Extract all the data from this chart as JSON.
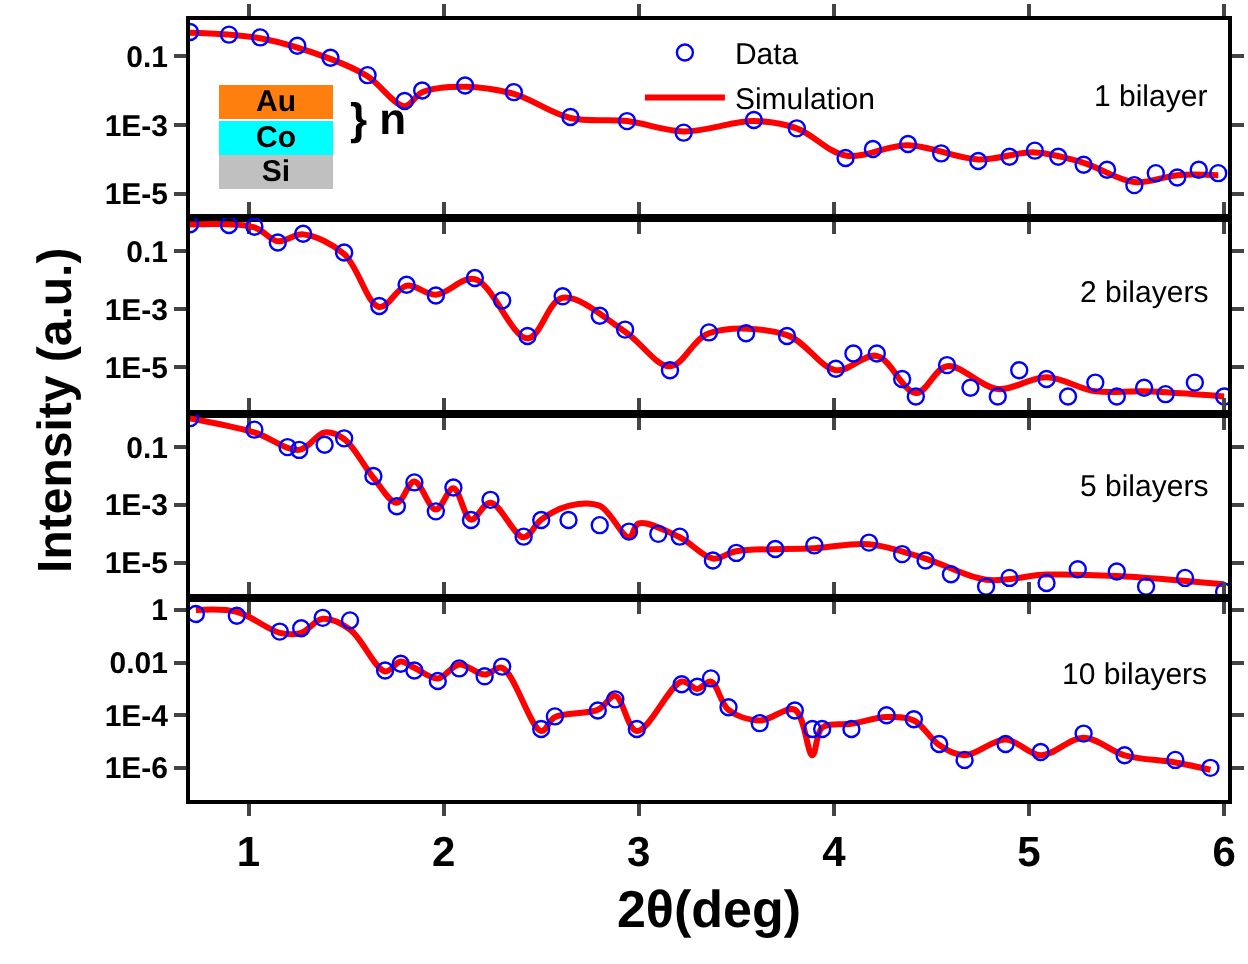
{
  "chart_data": [
    {
      "type": "scatter",
      "ylabel": "Intensity (a.u.)",
      "annotations": [
        "1 bilayer",
        "Au",
        "Co",
        "Si",
        "} n"
      ],
      "legend": "top",
      "log": "y",
      "tick_labels": "y",
      "xlim": [
        0.7,
        6.02
      ],
      "xticks": [
        1,
        2,
        3,
        4,
        5,
        6
      ],
      "ylim": [
        2e-06,
        1.12
      ],
      "yticks": [
        0.1,
        {
          "value": 0.001,
          "label": "1E-3"
        },
        {
          "value": 1e-05,
          "label": "1E-5"
        }
      ],
      "series": [
        {
          "name": "Data",
          "marker": "circle",
          "color": "#0000ff",
          "x": [
            0.7,
            0.9,
            1.06,
            1.25,
            1.42,
            1.61,
            1.8,
            1.89,
            2.11,
            2.36,
            2.65,
            2.94,
            3.23,
            3.59,
            3.81,
            4.06,
            4.2,
            4.38,
            4.55,
            4.74,
            4.9,
            5.03,
            5.15,
            5.28,
            5.4,
            5.54,
            5.65,
            5.76,
            5.87,
            5.97
          ],
          "values": [
            0.5,
            0.42,
            0.35,
            0.2,
            0.09,
            0.028,
            0.005,
            0.01,
            0.014,
            0.009,
            0.0017,
            0.0013,
            0.0006,
            0.0014,
            0.0008,
            0.00011,
            0.0002,
            0.00028,
            0.00015,
            9e-05,
            0.00012,
            0.00018,
            0.00012,
            7e-05,
            5e-05,
            1.8e-05,
            4e-05,
            3e-05,
            5e-05,
            4e-05
          ]
        },
        {
          "name": "Simulation",
          "type": "line",
          "color": "#ff0000",
          "x": [
            0.7,
            1.06,
            1.42,
            1.61,
            1.8,
            1.89,
            2.11,
            2.36,
            2.65,
            2.94,
            3.23,
            3.59,
            3.81,
            4.06,
            4.38,
            4.74,
            5.03,
            5.28,
            5.54,
            5.76,
            5.97
          ],
          "values": [
            0.48,
            0.33,
            0.083,
            0.026,
            0.0035,
            0.009,
            0.013,
            0.008,
            0.0016,
            0.0013,
            0.00065,
            0.0013,
            0.0008,
            0.00013,
            0.00026,
            0.0001,
            0.00016,
            8e-05,
            2.2e-05,
            3.5e-05,
            3.5e-05
          ]
        }
      ]
    },
    {
      "type": "scatter",
      "annotations": [
        "2 bilayers"
      ],
      "log": "y",
      "tick_labels": "y",
      "xlim": [
        0.7,
        6.02
      ],
      "xticks": [
        1,
        2,
        3,
        4,
        5,
        6
      ],
      "ylim": [
        2.5e-07,
        1.4
      ],
      "yticks": [
        0.1,
        {
          "value": 0.001,
          "label": "1E-3"
        },
        {
          "value": 1e-05,
          "label": "1E-5"
        }
      ],
      "series": [
        {
          "marker": "circle",
          "color": "#0000ff",
          "x": [
            0.7,
            0.9,
            1.03,
            1.15,
            1.28,
            1.49,
            1.67,
            1.81,
            1.96,
            2.16,
            2.3,
            2.43,
            2.61,
            2.8,
            2.93,
            3.16,
            3.36,
            3.55,
            3.76,
            4.01,
            4.1,
            4.22,
            4.35,
            4.42,
            4.58,
            4.7,
            4.84,
            4.95,
            5.09,
            5.2,
            5.34,
            5.45,
            5.59,
            5.7,
            5.85,
            6.0
          ],
          "values": [
            0.85,
            0.8,
            0.7,
            0.2,
            0.4,
            0.09,
            0.0013,
            0.007,
            0.003,
            0.012,
            0.002,
            0.00012,
            0.0028,
            0.0006,
            0.0002,
            8e-06,
            0.00016,
            0.00015,
            0.00012,
            9e-06,
            3e-05,
            3e-05,
            4e-06,
            1e-06,
            1.2e-05,
            2e-06,
            1e-06,
            8e-06,
            4e-06,
            1e-06,
            3e-06,
            1e-06,
            2e-06,
            1.2e-06,
            3e-06,
            1e-06
          ]
        },
        {
          "type": "line",
          "color": "#ff0000",
          "x": [
            0.7,
            1.03,
            1.15,
            1.28,
            1.49,
            1.67,
            1.81,
            1.96,
            2.16,
            2.43,
            2.61,
            2.93,
            3.16,
            3.36,
            3.76,
            4.01,
            4.22,
            4.42,
            4.58,
            4.84,
            5.09,
            5.34,
            5.59,
            6.0
          ],
          "values": [
            0.83,
            0.66,
            0.22,
            0.38,
            0.08,
            0.0012,
            0.0065,
            0.0032,
            0.011,
            0.0001,
            0.0025,
            0.00017,
            1.1e-05,
            0.00015,
            0.00013,
            8e-06,
            2.5e-05,
            1.3e-06,
            1.1e-05,
            1.8e-06,
            4.6e-06,
            1.5e-06,
            1.5e-06,
            1e-06
          ]
        }
      ]
    },
    {
      "type": "scatter",
      "annotations": [
        "5 bilayers"
      ],
      "log": "y",
      "tick_labels": "y",
      "xlim": [
        0.7,
        6.02
      ],
      "xticks": [
        1,
        2,
        3,
        4,
        5,
        6
      ],
      "ylim": [
        6e-07,
        1.4
      ],
      "yticks": [
        0.1,
        {
          "value": 0.001,
          "label": "1E-3"
        },
        {
          "value": 1e-05,
          "label": "1E-5"
        }
      ],
      "series": [
        {
          "marker": "circle",
          "color": "#0000ff",
          "x": [
            0.7,
            1.03,
            1.2,
            1.26,
            1.39,
            1.49,
            1.64,
            1.76,
            1.85,
            1.96,
            2.05,
            2.14,
            2.24,
            2.41,
            2.5,
            2.64,
            2.8,
            2.95,
            3.1,
            3.21,
            3.38,
            3.5,
            3.7,
            3.9,
            4.18,
            4.35,
            4.47,
            4.6,
            4.78,
            4.9,
            5.09,
            5.25,
            5.45,
            5.6,
            5.8,
            6.0
          ],
          "values": [
            1.0,
            0.4,
            0.1,
            0.08,
            0.12,
            0.2,
            0.01,
            0.0009,
            0.006,
            0.0006,
            0.004,
            0.0003,
            0.0015,
            8e-05,
            0.0003,
            0.0003,
            0.0002,
            0.00012,
            0.0001,
            8e-05,
            1.2e-05,
            2.2e-05,
            3e-05,
            4e-05,
            5e-05,
            2e-05,
            1.2e-05,
            4e-06,
            1.5e-06,
            3e-06,
            2e-06,
            6e-06,
            5e-06,
            1.5e-06,
            3e-06,
            1e-06
          ]
        },
        {
          "type": "line",
          "color": "#ff0000",
          "x": [
            0.7,
            1.03,
            1.26,
            1.39,
            1.49,
            1.64,
            1.76,
            1.85,
            1.96,
            2.05,
            2.14,
            2.24,
            2.41,
            2.5,
            2.64,
            2.8,
            2.95,
            3.0,
            3.21,
            3.38,
            3.5,
            3.9,
            4.18,
            4.47,
            4.78,
            5.09,
            5.45,
            6.0
          ],
          "values": [
            0.98,
            0.32,
            0.08,
            0.32,
            0.19,
            0.0087,
            0.0012,
            0.0065,
            0.00069,
            0.0038,
            0.00031,
            0.0012,
            7.6e-05,
            0.00031,
            0.00093,
            0.00093,
            7.6e-05,
            0.00023,
            7.6e-05,
            1.4e-05,
            2.5e-05,
            3.2e-05,
            4.4e-05,
            1.4e-05,
            2.6e-06,
            3.9e-06,
            3.5e-06,
            1.8e-06
          ]
        }
      ]
    },
    {
      "type": "scatter",
      "xlabel": "2θ(deg)",
      "annotations": [
        "10 bilayers"
      ],
      "log": "y",
      "xlim": [
        0.7,
        6.02
      ],
      "xticks": [
        1,
        2,
        3,
        4,
        5,
        6
      ],
      "ylim": [
        6e-08,
        2.8
      ],
      "yticks": [
        1,
        0.01,
        {
          "value": 0.0001,
          "label": "1E-4"
        },
        {
          "value": 1e-06,
          "label": "1E-6"
        }
      ],
      "series": [
        {
          "marker": "circle",
          "color": "#0000ff",
          "x": [
            0.73,
            0.94,
            1.16,
            1.27,
            1.38,
            1.52,
            1.7,
            1.78,
            1.85,
            1.97,
            2.08,
            2.21,
            2.3,
            2.5,
            2.57,
            2.79,
            2.88,
            2.99,
            3.22,
            3.3,
            3.37,
            3.46,
            3.62,
            3.8,
            3.89,
            3.94,
            4.09,
            4.27,
            4.41,
            4.54,
            4.67,
            4.88,
            5.06,
            5.28,
            5.49,
            5.75,
            5.93
          ],
          "values": [
            0.7,
            0.6,
            0.15,
            0.2,
            0.5,
            0.4,
            0.005,
            0.009,
            0.005,
            0.002,
            0.006,
            0.003,
            0.007,
            3e-05,
            9e-05,
            0.00015,
            0.0004,
            3e-05,
            0.0015,
            0.0012,
            0.0025,
            0.0002,
            5e-05,
            0.00015,
            3e-05,
            3e-05,
            3e-05,
            0.0001,
            7e-05,
            8e-06,
            2e-06,
            8e-06,
            4e-06,
            2e-05,
            3e-06,
            2e-06,
            1e-06
          ]
        },
        {
          "type": "line",
          "color": "#ff0000",
          "x": [
            0.73,
            0.94,
            1.16,
            1.27,
            1.38,
            1.52,
            1.7,
            1.78,
            1.85,
            1.97,
            2.08,
            2.21,
            2.3,
            2.5,
            2.57,
            2.79,
            2.88,
            2.99,
            3.22,
            3.3,
            3.37,
            3.46,
            3.62,
            3.8,
            3.89,
            3.94,
            4.09,
            4.27,
            4.41,
            4.54,
            4.67,
            4.88,
            5.06,
            5.28,
            5.49,
            5.75,
            5.93
          ],
          "values": [
            1.0,
            0.85,
            0.135,
            0.135,
            0.46,
            0.18,
            0.0046,
            0.011,
            0.0063,
            0.0025,
            0.0085,
            0.0035,
            0.0063,
            2.5e-05,
            8.5e-05,
            0.00016,
            0.00054,
            2.5e-05,
            0.0019,
            0.001,
            0.0019,
            0.00016,
            6.3e-05,
            0.00016,
            3e-06,
            3.4e-05,
            4.7e-05,
            8.5e-05,
            6.3e-05,
            7.4e-06,
            3e-06,
            1.2e-05,
            3e-06,
            1.4e-05,
            3e-06,
            1.6e-06,
            8.5e-07
          ]
        }
      ]
    }
  ]
}
